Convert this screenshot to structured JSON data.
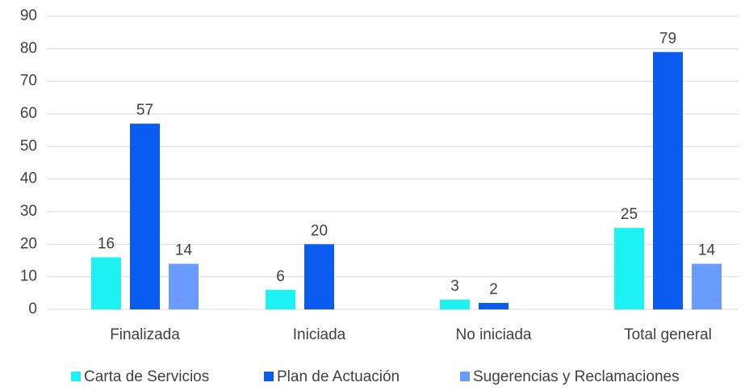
{
  "chart_data": {
    "type": "bar",
    "categories": [
      "Finalizada",
      "Iniciada",
      "No iniciada",
      "Total general"
    ],
    "series": [
      {
        "name": "Carta de Servicios",
        "color": "#1cf2f2",
        "values": [
          16,
          6,
          3,
          25
        ]
      },
      {
        "name": "Plan de Actuación",
        "color": "#0a5cf0",
        "values": [
          57,
          20,
          2,
          79
        ]
      },
      {
        "name": "Sugerencias y Reclamaciones",
        "color": "#6a9bff",
        "values": [
          14,
          null,
          null,
          14
        ]
      }
    ],
    "ylim": [
      0,
      90
    ],
    "yticks": [
      0,
      10,
      20,
      30,
      40,
      50,
      60,
      70,
      80,
      90
    ],
    "grid": true,
    "legend": "bottom"
  }
}
